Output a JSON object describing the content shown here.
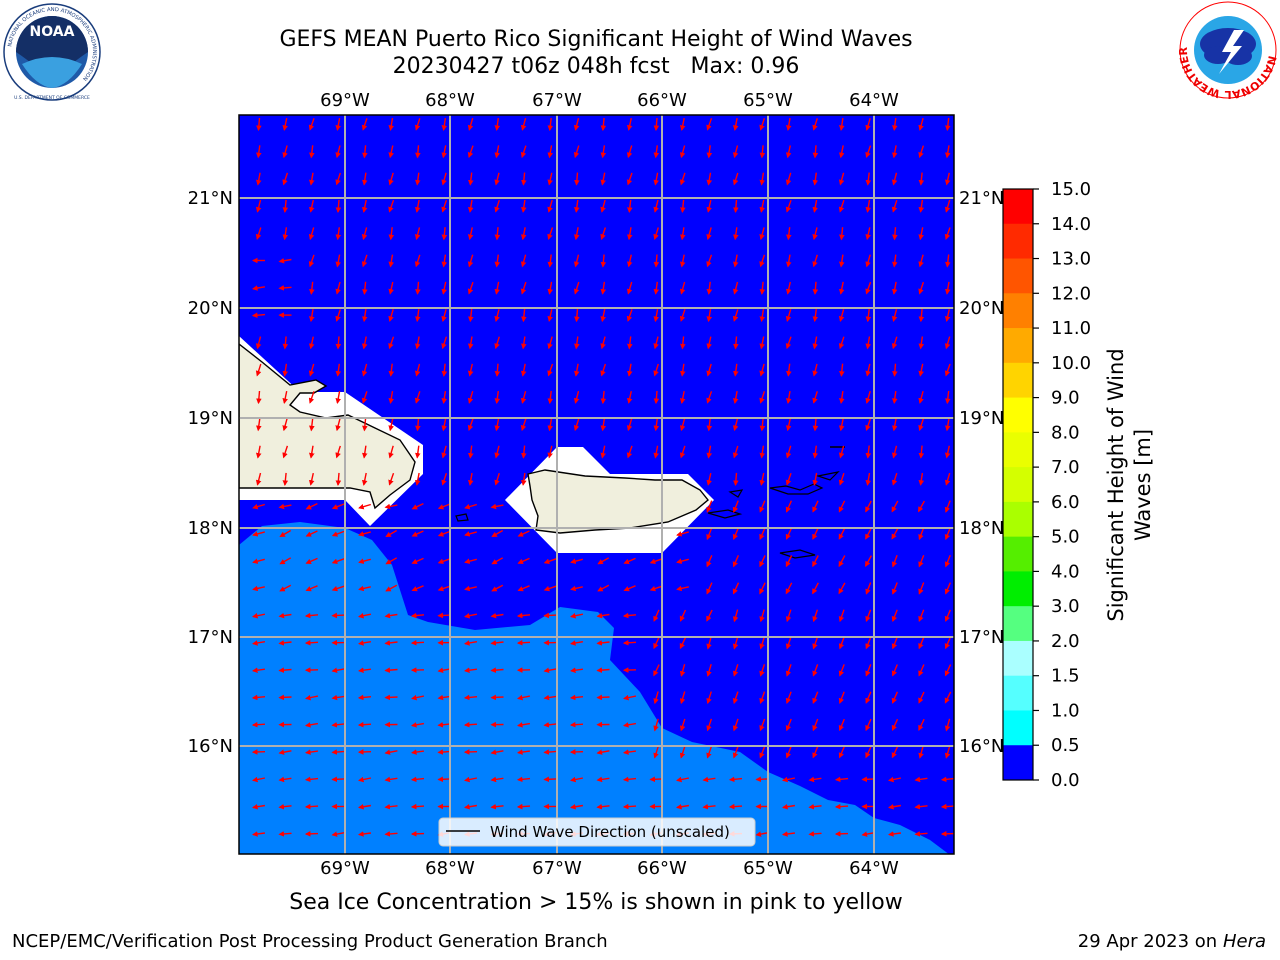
{
  "header": {
    "title_line1": "GEFS MEAN Puerto Rico Significant Height of Wind Waves",
    "title_line2": "20230427 t06z 048h fcst   Max: 0.96"
  },
  "logos": {
    "left": {
      "name": "NOAA",
      "ring_text": "NATIONAL OCEANIC AND ATMOSPHERIC ADMINISTRATION",
      "bottom_text": "U.S. DEPARTMENT OF COMMERCE"
    },
    "right": {
      "ring_text": "NATIONAL WEATHER SERVICE"
    }
  },
  "map": {
    "lon_ticks": [
      "69°W",
      "68°W",
      "67°W",
      "66°W",
      "65°W",
      "64°W"
    ],
    "lat_ticks": [
      "21°N",
      "20°N",
      "19°N",
      "18°N",
      "17°N",
      "16°N"
    ],
    "legend_label": "Wind Wave Direction (unscaled)",
    "colors": {
      "ocean_low": "#0000ff",
      "ocean_mid": "#0080ff",
      "land": "#f0efdd",
      "arrow": "#ff0000",
      "grid": "#b0b0b0"
    }
  },
  "colorbar": {
    "label": "Significant Height of Wind Waves [m]",
    "ticks": [
      "15.0",
      "14.0",
      "13.0",
      "12.0",
      "11.0",
      "10.0",
      "9.0",
      "8.0",
      "7.0",
      "6.0",
      "5.0",
      "4.0",
      "3.0",
      "2.0",
      "1.5",
      "1.0",
      "0.5",
      "0.0"
    ],
    "colors_top_to_bottom": [
      "#ff0000",
      "#ff2a00",
      "#ff5500",
      "#ff8000",
      "#ffaa00",
      "#ffd400",
      "#ffff00",
      "#eaff00",
      "#d4ff00",
      "#aaff00",
      "#55ee00",
      "#00ee00",
      "#55ff80",
      "#aaffff",
      "#55ffff",
      "#00ffff",
      "#0080ff",
      "#0000ff"
    ]
  },
  "caption": "Sea Ice Concentration > 15% is shown in pink to yellow",
  "footer": {
    "left": "NCEP/EMC/Verification Post Processing Product Generation Branch",
    "right_date": "29 Apr 2023 on ",
    "right_host": "Hera"
  }
}
